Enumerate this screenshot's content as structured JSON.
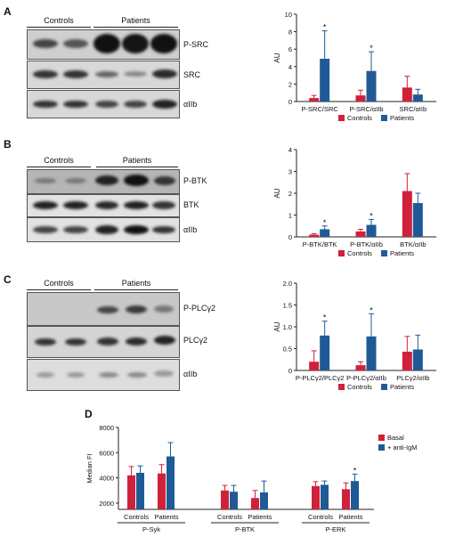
{
  "colors": {
    "controls": "#d0213a",
    "patients": "#1f5a96",
    "basal": "#d0213a",
    "anti_igm": "#1f5a96"
  },
  "panels": {
    "A": {
      "letter": "A",
      "groups": {
        "controls": "Controls",
        "patients": "Patients"
      },
      "rows": [
        "P-SRC",
        "SRC",
        "αIIb"
      ]
    },
    "B": {
      "letter": "B",
      "groups": {
        "controls": "Controls",
        "patients": "Patients"
      },
      "rows": [
        "P-BTK",
        "BTK",
        "αIIb"
      ]
    },
    "C": {
      "letter": "C",
      "groups": {
        "controls": "Controls",
        "patients": "Patients"
      },
      "rows": [
        "P-PLCγ2",
        "PLCγ2",
        "αIIb"
      ]
    },
    "D": {
      "letter": "D"
    }
  },
  "chart_data": [
    {
      "id": "A",
      "type": "bar",
      "ylabel": "AU",
      "ylim": [
        0,
        10
      ],
      "yticks": [
        0,
        2,
        4,
        6,
        8,
        10
      ],
      "categories": [
        "P-SRC/SRC",
        "P-SRC/αIIb",
        "SRC/αIIb"
      ],
      "series": [
        {
          "name": "Controls",
          "values": [
            0.4,
            0.7,
            1.6
          ],
          "errors": [
            0.3,
            0.6,
            1.3
          ]
        },
        {
          "name": "Patients",
          "values": [
            4.9,
            3.5,
            0.8
          ],
          "errors": [
            3.2,
            2.2,
            0.6
          ]
        }
      ],
      "significance": [
        true,
        true,
        false
      ],
      "sig_marker": "*",
      "legend": "bottom"
    },
    {
      "id": "B",
      "type": "bar",
      "ylabel": "AU",
      "ylim": [
        0,
        4
      ],
      "yticks": [
        0,
        1,
        2,
        3,
        4
      ],
      "categories": [
        "P-BTK/BTK",
        "P-BTK/αIIb",
        "BTK/αIIb"
      ],
      "series": [
        {
          "name": "Controls",
          "values": [
            0.1,
            0.25,
            2.1
          ],
          "errors": [
            0.05,
            0.1,
            0.8
          ]
        },
        {
          "name": "Patients",
          "values": [
            0.35,
            0.55,
            1.55
          ],
          "errors": [
            0.15,
            0.25,
            0.45
          ]
        }
      ],
      "significance": [
        true,
        true,
        false
      ],
      "sig_marker": "*",
      "legend": "bottom"
    },
    {
      "id": "C",
      "type": "bar",
      "ylabel": "AU",
      "ylim": [
        0,
        2.0
      ],
      "yticks": [
        0,
        0.5,
        1.0,
        1.5,
        2.0
      ],
      "ytick_labels": [
        "0",
        "0.5",
        "1.0",
        "1.5",
        "2.0"
      ],
      "categories": [
        "P-PLCγ2/PLCγ2",
        "P-PLCγ2/αIIb",
        "PLCγ2/αIIb"
      ],
      "series": [
        {
          "name": "Controls",
          "values": [
            0.2,
            0.12,
            0.43
          ],
          "errors": [
            0.25,
            0.08,
            0.35
          ]
        },
        {
          "name": "Patients",
          "values": [
            0.8,
            0.78,
            0.48
          ],
          "errors": [
            0.33,
            0.52,
            0.33
          ]
        }
      ],
      "significance": [
        true,
        true,
        false
      ],
      "sig_marker": "*",
      "legend": "bottom"
    },
    {
      "id": "D",
      "type": "bar",
      "ylabel": "Median FI",
      "ylim": [
        1500,
        8000
      ],
      "yticks": [
        2000,
        4000,
        6000,
        8000
      ],
      "groups": [
        {
          "name": "P-Syk",
          "subcategories": [
            "Controls",
            "Patients"
          ]
        },
        {
          "name": "P-BTK",
          "subcategories": [
            "Controls",
            "Patients"
          ]
        },
        {
          "name": "P-ERK",
          "subcategories": [
            "Controls",
            "Patients"
          ]
        }
      ],
      "series": [
        {
          "name": "Basal",
          "values": [
            4200,
            4350,
            3000,
            2400,
            3350,
            3100
          ],
          "errors": [
            700,
            700,
            400,
            600,
            350,
            500
          ]
        },
        {
          "name": "+ anti-IgM",
          "values": [
            4400,
            5700,
            2900,
            2850,
            3450,
            3750
          ],
          "errors": [
            550,
            1100,
            500,
            900,
            300,
            550
          ]
        }
      ],
      "significance": [
        false,
        false,
        false,
        false,
        false,
        true
      ],
      "sig_marker": "*",
      "legend": "right"
    }
  ]
}
